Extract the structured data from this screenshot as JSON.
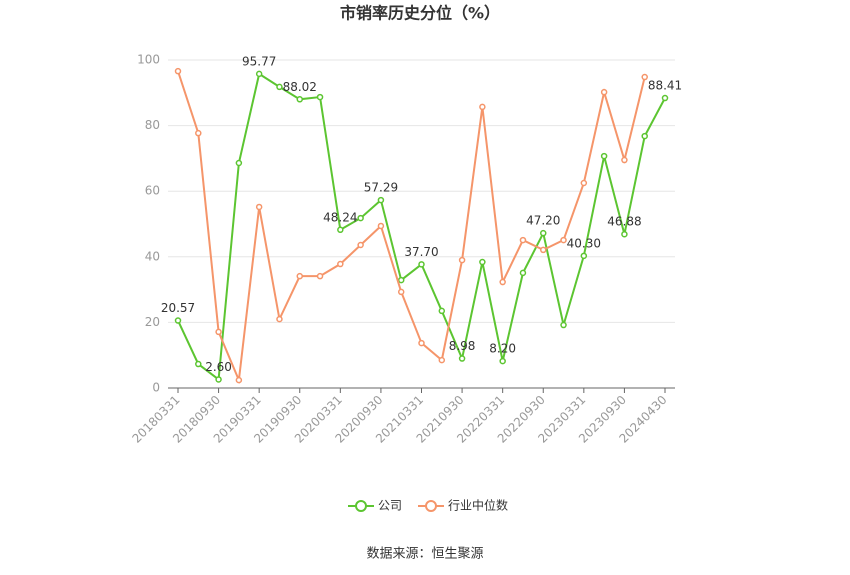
{
  "chart_data": {
    "type": "line",
    "title": "市销率历史分位（%）",
    "source": "数据来源：恒生聚源",
    "categories": [
      "20180331",
      null,
      "20180930",
      null,
      "20190331",
      null,
      "20190930",
      null,
      "20200331",
      null,
      "20200930",
      null,
      "20210331",
      null,
      "20210930",
      null,
      "20220331",
      null,
      "20220930",
      null,
      "20230331",
      null,
      "20230930",
      null,
      "20240430"
    ],
    "series": [
      {
        "name": "公司",
        "color": "#5cc531",
        "values": [
          20.57,
          7.3,
          2.6,
          68.6,
          95.77,
          91.8,
          88.02,
          88.7,
          48.24,
          51.8,
          57.29,
          32.9,
          37.7,
          23.5,
          8.98,
          38.4,
          8.2,
          35.1,
          47.2,
          19.2,
          40.3,
          70.7,
          46.88,
          76.8,
          88.41
        ],
        "value_labels": [
          "20.57",
          null,
          "2.60",
          null,
          "95.77",
          null,
          "88.02",
          null,
          "48.24",
          null,
          "57.29",
          null,
          "37.70",
          null,
          "8.98",
          null,
          "8.20",
          null,
          "47.20",
          null,
          "40.30",
          null,
          "46.88",
          null,
          "88.41"
        ]
      },
      {
        "name": "行业中位数",
        "color": "#f5956a",
        "values": [
          96.6,
          77.7,
          17.1,
          2.4,
          55.2,
          21.0,
          34.1,
          34.1,
          37.8,
          43.6,
          49.4,
          29.3,
          13.7,
          8.5,
          39.0,
          85.7,
          32.3,
          45.1,
          42.1,
          45.1,
          62.5,
          90.2,
          69.5,
          94.8,
          null
        ]
      }
    ],
    "ylim": [
      0,
      100
    ],
    "yticks": [
      0,
      20,
      40,
      60,
      80,
      100
    ],
    "grid": true
  }
}
